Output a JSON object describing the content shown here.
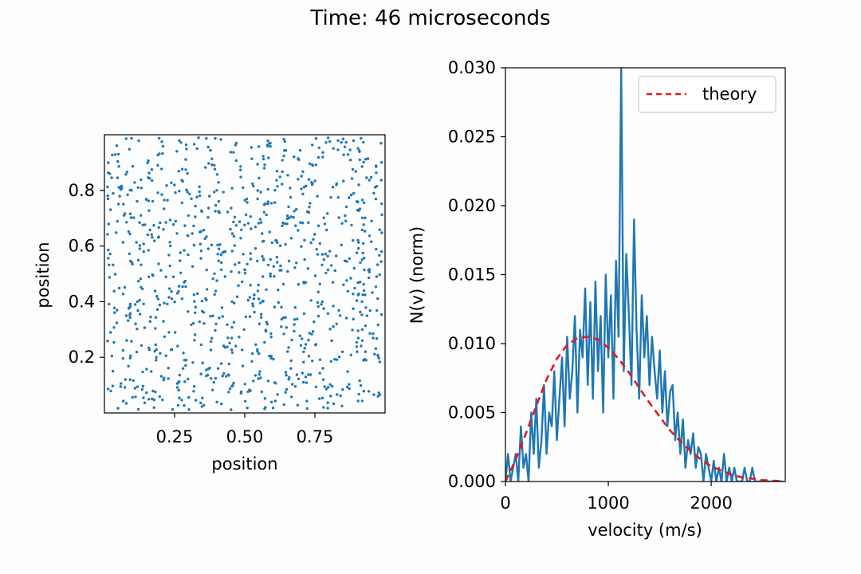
{
  "figure_title": "Time: 46 microseconds",
  "colors": {
    "scatter": "#1f77b4",
    "histogram": "#1f77b4",
    "theory": "#e31a1c",
    "axes": "#000000",
    "background": "#fdfdfd"
  },
  "chart_data": [
    {
      "type": "scatter",
      "title": "",
      "xlabel": "position",
      "ylabel": "position",
      "xlim": [
        0.0,
        1.0
      ],
      "ylim": [
        0.0,
        1.0
      ],
      "xticks": [
        0.25,
        0.5,
        0.75
      ],
      "xtick_labels": [
        "0.25",
        "0.50",
        "0.75"
      ],
      "yticks": [
        0.2,
        0.4,
        0.6,
        0.8
      ],
      "ytick_labels": [
        "0.2",
        "0.4",
        "0.6",
        "0.8"
      ],
      "grid": false,
      "n_points": 1000,
      "distribution": "approximately uniform over the unit square",
      "points_sample": [
        [
          0.05,
          0.93
        ],
        [
          0.12,
          0.81
        ],
        [
          0.21,
          0.66
        ],
        [
          0.33,
          0.95
        ],
        [
          0.41,
          0.72
        ],
        [
          0.48,
          0.54
        ],
        [
          0.57,
          0.88
        ],
        [
          0.63,
          0.31
        ],
        [
          0.71,
          0.47
        ],
        [
          0.78,
          0.12
        ],
        [
          0.86,
          0.69
        ],
        [
          0.93,
          0.22
        ],
        [
          0.09,
          0.38
        ],
        [
          0.17,
          0.05
        ],
        [
          0.26,
          0.43
        ],
        [
          0.35,
          0.18
        ],
        [
          0.44,
          0.27
        ],
        [
          0.52,
          0.08
        ],
        [
          0.61,
          0.62
        ],
        [
          0.69,
          0.84
        ],
        [
          0.76,
          0.57
        ],
        [
          0.84,
          0.35
        ],
        [
          0.91,
          0.91
        ],
        [
          0.97,
          0.49
        ],
        [
          0.03,
          0.15
        ],
        [
          0.14,
          0.58
        ],
        [
          0.23,
          0.29
        ],
        [
          0.31,
          0.77
        ],
        [
          0.39,
          0.11
        ],
        [
          0.47,
          0.97
        ],
        [
          0.55,
          0.41
        ],
        [
          0.64,
          0.03
        ],
        [
          0.73,
          0.74
        ],
        [
          0.81,
          0.26
        ],
        [
          0.89,
          0.52
        ],
        [
          0.96,
          0.79
        ],
        [
          0.07,
          0.71
        ],
        [
          0.19,
          0.89
        ],
        [
          0.28,
          0.16
        ],
        [
          0.37,
          0.59
        ]
      ]
    },
    {
      "type": "line",
      "title": "",
      "xlabel": "velocity (m/s)",
      "ylabel": "N(v) (norm)",
      "xlim": [
        0,
        2720
      ],
      "ylim": [
        0.0,
        0.03
      ],
      "xticks": [
        0,
        1000,
        2000
      ],
      "xtick_labels": [
        "0",
        "1000",
        "2000"
      ],
      "yticks": [
        0.0,
        0.005,
        0.01,
        0.015,
        0.02,
        0.025,
        0.03
      ],
      "ytick_labels": [
        "0.000",
        "0.005",
        "0.010",
        "0.015",
        "0.020",
        "0.025",
        "0.030"
      ],
      "grid": false,
      "legend": {
        "position": "top-right",
        "entries": [
          "theory"
        ]
      },
      "series": [
        {
          "name": "histogram",
          "style": "solid",
          "x": [
            0,
            25,
            50,
            75,
            100,
            125,
            150,
            175,
            200,
            225,
            250,
            275,
            300,
            325,
            350,
            375,
            400,
            425,
            450,
            475,
            500,
            525,
            550,
            575,
            600,
            625,
            650,
            675,
            700,
            725,
            750,
            775,
            800,
            825,
            850,
            875,
            900,
            925,
            950,
            975,
            1000,
            1025,
            1050,
            1075,
            1100,
            1125,
            1150,
            1175,
            1200,
            1225,
            1250,
            1275,
            1300,
            1325,
            1350,
            1375,
            1400,
            1425,
            1450,
            1475,
            1500,
            1525,
            1550,
            1575,
            1600,
            1625,
            1650,
            1675,
            1700,
            1725,
            1750,
            1775,
            1800,
            1825,
            1850,
            1875,
            1900,
            1925,
            1950,
            1975,
            2000,
            2025,
            2050,
            2075,
            2100,
            2125,
            2150,
            2175,
            2200,
            2225,
            2250,
            2275,
            2300,
            2325,
            2350,
            2375,
            2400,
            2425,
            2450,
            2475,
            2500,
            2525,
            2550,
            2575,
            2600,
            2625,
            2650,
            2675,
            2700
          ],
          "values": [
            0.0,
            0.002,
            0.0,
            0.001,
            0.002,
            0.0,
            0.004,
            0.001,
            0.002,
            0.0,
            0.005,
            0.002,
            0.006,
            0.001,
            0.003,
            0.007,
            0.002,
            0.005,
            0.004,
            0.008,
            0.003,
            0.006,
            0.009,
            0.004,
            0.0105,
            0.006,
            0.008,
            0.012,
            0.005,
            0.011,
            0.009,
            0.014,
            0.007,
            0.013,
            0.006,
            0.0145,
            0.008,
            0.012,
            0.005,
            0.015,
            0.009,
            0.0135,
            0.006,
            0.016,
            0.0105,
            0.03,
            0.008,
            0.0165,
            0.012,
            0.007,
            0.019,
            0.011,
            0.006,
            0.0135,
            0.009,
            0.012,
            0.007,
            0.0105,
            0.008,
            0.006,
            0.0095,
            0.005,
            0.008,
            0.004,
            0.0065,
            0.007,
            0.003,
            0.005,
            0.002,
            0.0045,
            0.001,
            0.003,
            0.002,
            0.0035,
            0.001,
            0.0025,
            0.002,
            0.0,
            0.002,
            0.001,
            0.0,
            0.0015,
            0.0,
            0.001,
            0.0,
            0.002,
            0.0,
            0.001,
            0.0,
            0.001,
            0.0,
            0.0,
            0.0,
            0.001,
            0.0,
            0.0,
            0.001,
            0.0,
            0.0,
            0.0,
            0.0,
            0.0,
            0.0,
            0.0,
            0.0,
            0.0,
            0.0,
            0.0,
            0.0
          ]
        },
        {
          "name": "theory",
          "style": "dashed",
          "x": [
            0,
            100,
            200,
            300,
            400,
            500,
            600,
            700,
            800,
            900,
            1000,
            1100,
            1200,
            1300,
            1400,
            1500,
            1600,
            1700,
            1800,
            1900,
            2000,
            2100,
            2200,
            2300,
            2400,
            2500,
            2600,
            2700
          ],
          "values": [
            0.0,
            0.0016,
            0.0035,
            0.0055,
            0.0074,
            0.0089,
            0.0099,
            0.0104,
            0.0105,
            0.0103,
            0.0097,
            0.0089,
            0.0079,
            0.0068,
            0.0057,
            0.0047,
            0.0037,
            0.0029,
            0.0022,
            0.0016,
            0.0011,
            0.0008,
            0.0005,
            0.0003,
            0.0002,
            0.0001,
            6e-05,
            3e-05
          ]
        }
      ]
    }
  ]
}
